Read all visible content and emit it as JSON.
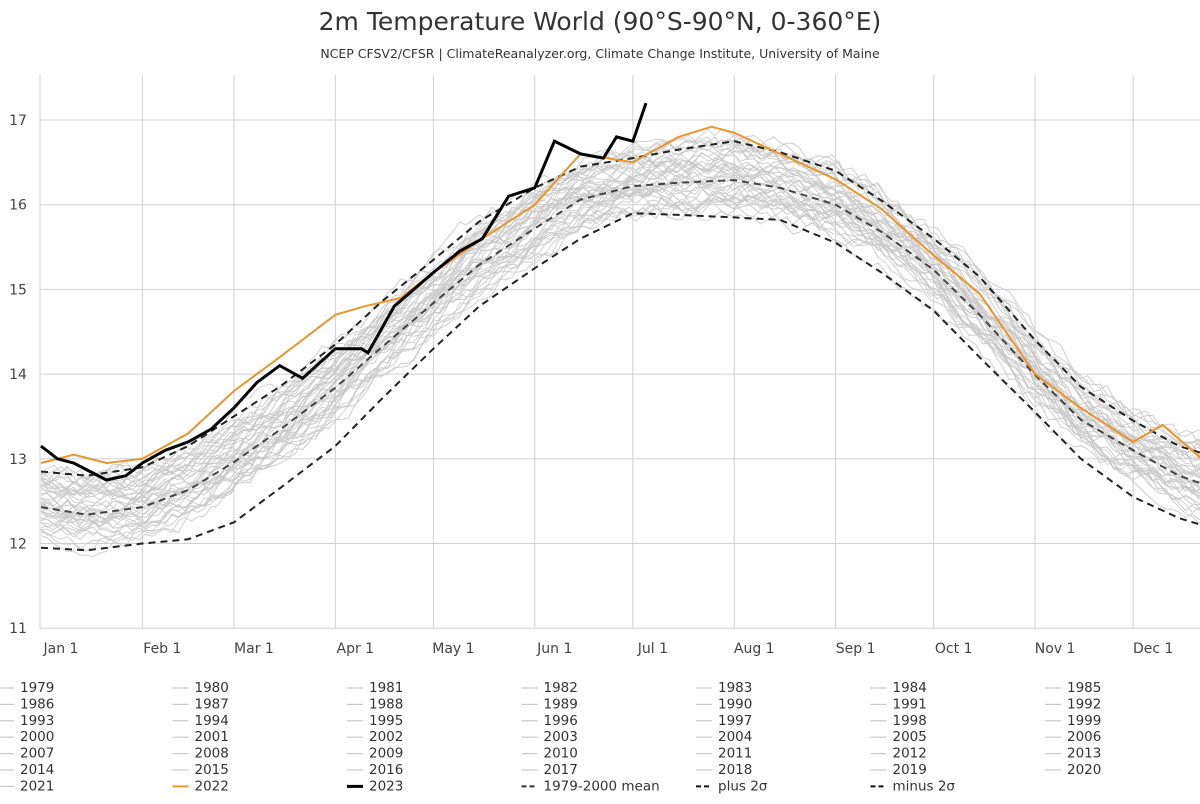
{
  "chart_data": {
    "type": "line",
    "title": "2m Temperature World (90°S-90°N, 0-360°E)",
    "subtitle": "NCEP CFSV2/CFSR | ClimateReanalyzer.org, Climate Change Institute, University of Maine",
    "xlabel": "",
    "ylabel": "",
    "ylim": [
      11,
      17.6
    ],
    "xlim_day_of_year": [
      0,
      355
    ],
    "grid": true,
    "y_ticks": [
      "11",
      "12",
      "13",
      "14",
      "15",
      "16",
      "17"
    ],
    "x_ticks": [
      {
        "label": "Jan 1",
        "day": 0
      },
      {
        "label": "Feb 1",
        "day": 31
      },
      {
        "label": "Mar 1",
        "day": 59
      },
      {
        "label": "Apr 1",
        "day": 90
      },
      {
        "label": "May 1",
        "day": 120
      },
      {
        "label": "Jun 1",
        "day": 151
      },
      {
        "label": "Jul 1",
        "day": 181
      },
      {
        "label": "Aug 1",
        "day": 212
      },
      {
        "label": "Sep 1",
        "day": 243
      },
      {
        "label": "Oct 1",
        "day": 273
      },
      {
        "label": "Nov 1",
        "day": 304
      },
      {
        "label": "Dec 1",
        "day": 334
      }
    ],
    "day": [
      0,
      14,
      31,
      45,
      59,
      73,
      90,
      104,
      120,
      134,
      151,
      165,
      181,
      195,
      212,
      226,
      243,
      257,
      273,
      287,
      304,
      318,
      334,
      348,
      365
    ],
    "mean_1979_2000": [
      12.43,
      12.34,
      12.43,
      12.63,
      12.96,
      13.34,
      13.84,
      14.31,
      14.84,
      15.29,
      15.72,
      16.06,
      16.22,
      16.26,
      16.29,
      16.2,
      16.0,
      15.68,
      15.23,
      14.7,
      13.99,
      13.46,
      13.1,
      12.8,
      12.57
    ],
    "plus_2sigma": [
      12.85,
      12.8,
      12.9,
      13.15,
      13.5,
      13.85,
      14.35,
      14.85,
      15.35,
      15.8,
      16.2,
      16.45,
      16.55,
      16.65,
      16.75,
      16.62,
      16.4,
      16.05,
      15.6,
      15.15,
      14.4,
      13.85,
      13.45,
      13.15,
      12.95
    ],
    "minus_2sigma": [
      11.95,
      11.92,
      12.0,
      12.05,
      12.25,
      12.65,
      13.15,
      13.7,
      14.3,
      14.8,
      15.25,
      15.6,
      15.9,
      15.88,
      15.85,
      15.82,
      15.55,
      15.2,
      14.75,
      14.2,
      13.55,
      13.0,
      12.55,
      12.3,
      12.1
    ],
    "series_2022": {
      "day": [
        0,
        10,
        20,
        31,
        45,
        59,
        73,
        90,
        99,
        110,
        120,
        135,
        151,
        165,
        181,
        195,
        205,
        212,
        226,
        243,
        257,
        273,
        287,
        304,
        318,
        334,
        343,
        355,
        365
      ],
      "values": [
        12.95,
        13.05,
        12.95,
        13.0,
        13.3,
        13.8,
        14.2,
        14.7,
        14.8,
        14.9,
        15.2,
        15.6,
        16.0,
        16.6,
        16.5,
        16.8,
        16.92,
        16.85,
        16.6,
        16.3,
        15.95,
        15.4,
        14.95,
        14.0,
        13.6,
        13.2,
        13.4,
        13.0,
        12.9
      ]
    },
    "series_2023": {
      "day": [
        0,
        5,
        10,
        15,
        20,
        26,
        31,
        38,
        45,
        52,
        59,
        66,
        73,
        80,
        90,
        98,
        100,
        108,
        120,
        128,
        135,
        143,
        151,
        157,
        165,
        172,
        176,
        181,
        185
      ],
      "values": [
        13.15,
        13.0,
        12.95,
        12.85,
        12.75,
        12.8,
        12.95,
        13.1,
        13.2,
        13.35,
        13.6,
        13.9,
        14.1,
        13.95,
        14.3,
        14.3,
        14.25,
        14.8,
        15.2,
        15.45,
        15.6,
        16.1,
        16.2,
        16.75,
        16.6,
        16.55,
        16.8,
        16.75,
        17.2
      ]
    },
    "series": [
      {
        "name": "1979",
        "color": "#c8c8c8"
      },
      {
        "name": "1980",
        "color": "#c8c8c8"
      },
      {
        "name": "1981",
        "color": "#c8c8c8"
      },
      {
        "name": "1982",
        "color": "#c8c8c8"
      },
      {
        "name": "1983",
        "color": "#c8c8c8"
      },
      {
        "name": "1984",
        "color": "#c8c8c8"
      },
      {
        "name": "1985",
        "color": "#c8c8c8"
      },
      {
        "name": "1986",
        "color": "#c8c8c8"
      },
      {
        "name": "1987",
        "color": "#c8c8c8"
      },
      {
        "name": "1988",
        "color": "#c8c8c8"
      },
      {
        "name": "1989",
        "color": "#c8c8c8"
      },
      {
        "name": "1990",
        "color": "#c8c8c8"
      },
      {
        "name": "1991",
        "color": "#c8c8c8"
      },
      {
        "name": "1992",
        "color": "#c8c8c8"
      },
      {
        "name": "1993",
        "color": "#c8c8c8"
      },
      {
        "name": "1994",
        "color": "#c8c8c8"
      },
      {
        "name": "1995",
        "color": "#c8c8c8"
      },
      {
        "name": "1996",
        "color": "#c8c8c8"
      },
      {
        "name": "1997",
        "color": "#c8c8c8"
      },
      {
        "name": "1998",
        "color": "#c8c8c8"
      },
      {
        "name": "1999",
        "color": "#c8c8c8"
      },
      {
        "name": "2000",
        "color": "#c8c8c8"
      },
      {
        "name": "2001",
        "color": "#c8c8c8"
      },
      {
        "name": "2002",
        "color": "#c8c8c8"
      },
      {
        "name": "2003",
        "color": "#c8c8c8"
      },
      {
        "name": "2004",
        "color": "#c8c8c8"
      },
      {
        "name": "2005",
        "color": "#c8c8c8"
      },
      {
        "name": "2006",
        "color": "#c8c8c8"
      },
      {
        "name": "2007",
        "color": "#c8c8c8"
      },
      {
        "name": "2008",
        "color": "#c8c8c8"
      },
      {
        "name": "2009",
        "color": "#c8c8c8"
      },
      {
        "name": "2010",
        "color": "#c8c8c8"
      },
      {
        "name": "2011",
        "color": "#c8c8c8"
      },
      {
        "name": "2012",
        "color": "#c8c8c8"
      },
      {
        "name": "2013",
        "color": "#c8c8c8"
      },
      {
        "name": "2014",
        "color": "#c8c8c8"
      },
      {
        "name": "2015",
        "color": "#c8c8c8"
      },
      {
        "name": "2016",
        "color": "#c8c8c8"
      },
      {
        "name": "2017",
        "color": "#c8c8c8"
      },
      {
        "name": "2018",
        "color": "#c8c8c8"
      },
      {
        "name": "2019",
        "color": "#c8c8c8"
      },
      {
        "name": "2020",
        "color": "#c8c8c8"
      },
      {
        "name": "2021",
        "color": "#c8c8c8"
      },
      {
        "name": "2022",
        "color": "#e8962e"
      },
      {
        "name": "2023",
        "color": "#000000"
      },
      {
        "name": "1979-2000 mean",
        "color": "#333333",
        "dash": true
      },
      {
        "name": "plus 2σ",
        "color": "#111111",
        "dash": true
      },
      {
        "name": "minus 2σ",
        "color": "#111111",
        "dash": true
      }
    ],
    "legend_position": "bottom"
  }
}
